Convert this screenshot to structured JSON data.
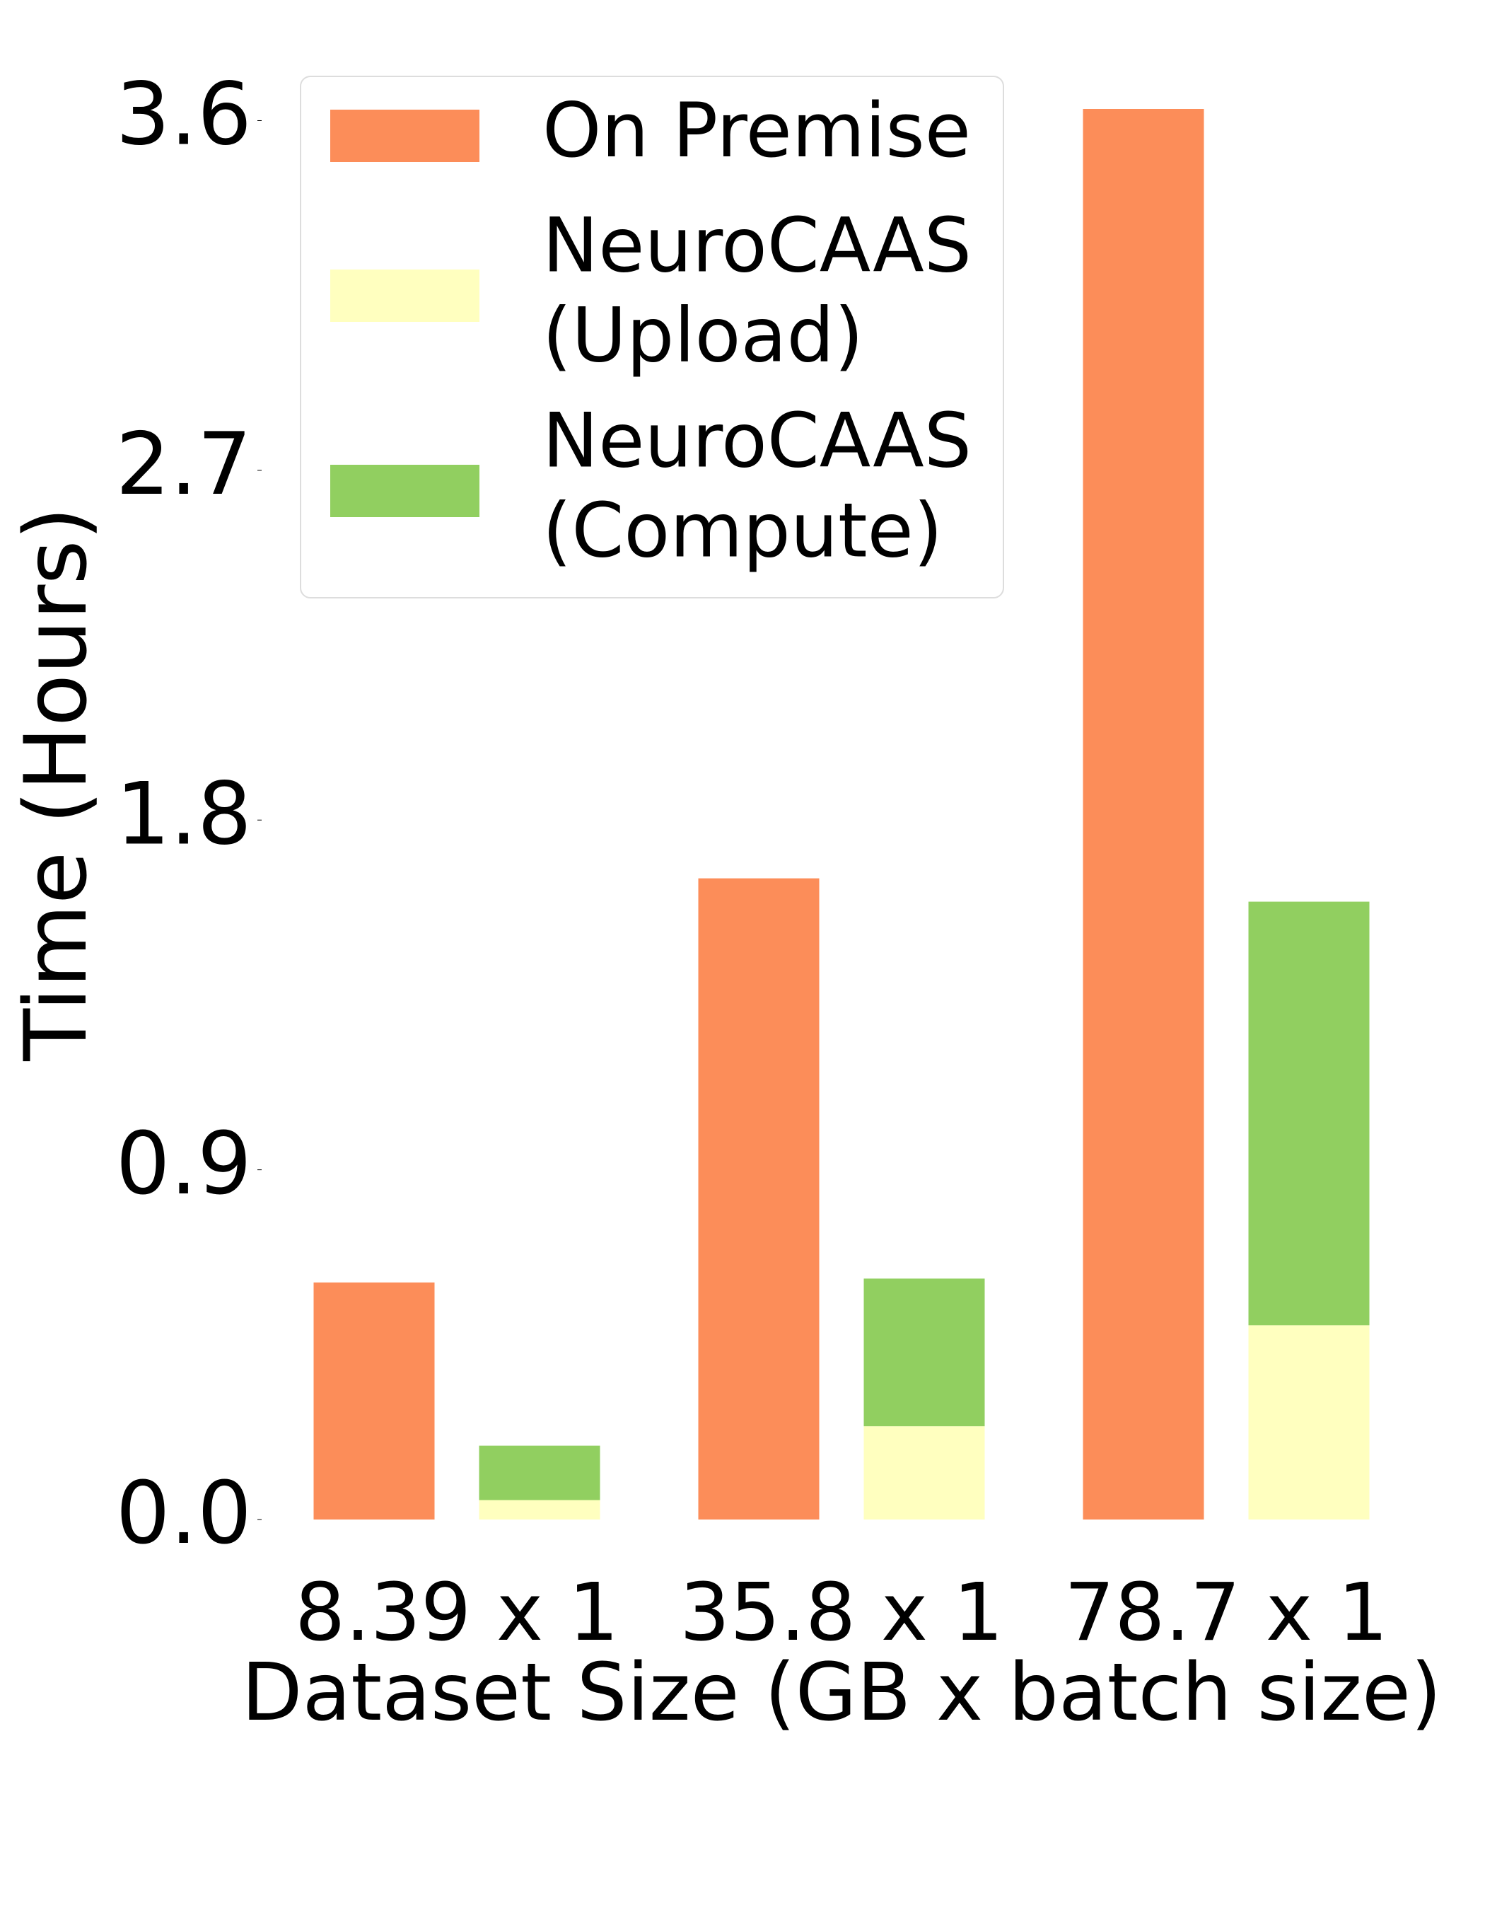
{
  "chart_data": {
    "type": "bar",
    "x_label": "Dataset Size (GB x batch size)",
    "y_label": "Time (Hours)",
    "categories": [
      "8.39 x 1",
      "35.8 x 1",
      "78.7 x 1"
    ],
    "series": [
      {
        "name": "On Premise",
        "color": "#fc8d59",
        "values": [
          0.61,
          1.65,
          3.63
        ]
      },
      {
        "name": "NeuroCAAS\n(Upload)",
        "color": "#ffffbf",
        "values": [
          0.05,
          0.24,
          0.5
        ],
        "stacked": true
      },
      {
        "name": "NeuroCAAS\n(Compute)",
        "color": "#91cf60",
        "values": [
          0.14,
          0.38,
          1.09
        ],
        "stacked": true
      }
    ],
    "ylim": [
      0,
      3.63
    ],
    "yticks": [
      {
        "value": 0,
        "label": "0.0"
      },
      0.9,
      1.8,
      2.7,
      3.6
    ],
    "grid": false,
    "legend": "upper left"
  }
}
